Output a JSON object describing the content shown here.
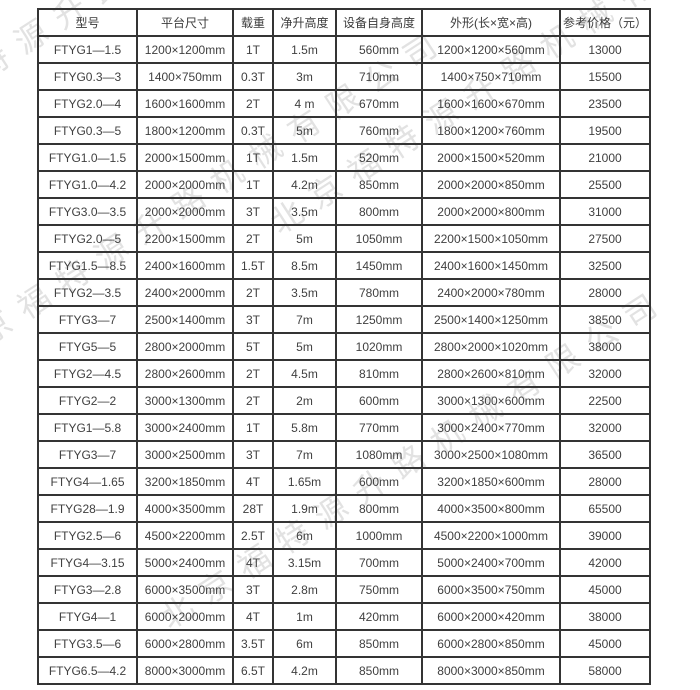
{
  "watermark": {
    "text": "北京福特源升路机械有限公司",
    "color": "#c7c7c7"
  },
  "colors": {
    "border": "#343434",
    "text": "#404040",
    "background": "#ffffff"
  },
  "table": {
    "headers": [
      "型号",
      "平台尺寸",
      "载重",
      "净升高度",
      "设备自身高度",
      "外形(长×宽×高)",
      "参考价格（元）"
    ],
    "rows": [
      [
        "FTYG1—1.5",
        "1200×1200mm",
        "1T",
        "1.5m",
        "560mm",
        "1200×1200×560mm",
        "13000"
      ],
      [
        "FTYG0.3—3",
        "1400×750mm",
        "0.3T",
        "3m",
        "710mm",
        "1400×750×710mm",
        "15500"
      ],
      [
        "FTYG2.0—4",
        "1600×1600mm",
        "2T",
        "4 m",
        "670mm",
        "1600×1600×670mm",
        "23500"
      ],
      [
        "FTYG0.3—5",
        "1800×1200mm",
        "0.3T",
        "5m",
        "760mm",
        "1800×1200×760mm",
        "19500"
      ],
      [
        "FTYG1.0—1.5",
        "2000×1500mm",
        "1T",
        "1.5m",
        "520mm",
        "2000×1500×520mm",
        "21000"
      ],
      [
        "FTYG1.0—4.2",
        "2000×2000mm",
        "1T",
        "4.2m",
        "850mm",
        "2000×2000×850mm",
        "25500"
      ],
      [
        "FTYG3.0—3.5",
        "2000×2000mm",
        "3T",
        "3.5m",
        "800mm",
        "2000×2000×800mm",
        "31000"
      ],
      [
        "FTYG2.0—5",
        "2200×1500mm",
        "2T",
        "5m",
        "1050mm",
        "2200×1500×1050mm",
        "27500"
      ],
      [
        "FTYG1.5—8.5",
        "2400×1600mm",
        "1.5T",
        "8.5m",
        "1450mm",
        "2400×1600×1450mm",
        "32500"
      ],
      [
        "FTYG2—3.5",
        "2400×2000mm",
        "2T",
        "3.5m",
        "780mm",
        "2400×2000×780mm",
        "28000"
      ],
      [
        "FTYG3—7",
        "2500×1400mm",
        "3T",
        "7m",
        "1250mm",
        "2500×1400×1250mm",
        "38500"
      ],
      [
        "FTYG5—5",
        "2800×2000mm",
        "5T",
        "5m",
        "1020mm",
        "2800×2000×1020mm",
        "38000"
      ],
      [
        "FTYG2—4.5",
        "2800×2600mm",
        "2T",
        "4.5m",
        "810mm",
        "2800×2600×810mm",
        "32000"
      ],
      [
        "FTYG2—2",
        "3000×1300mm",
        "2T",
        "2m",
        "600mm",
        "3000×1300×600mm",
        "22500"
      ],
      [
        "FTYG1—5.8",
        "3000×2400mm",
        "1T",
        "5.8m",
        "770mm",
        "3000×2400×770mm",
        "32000"
      ],
      [
        "FTYG3—7",
        "3000×2500mm",
        "3T",
        "7m",
        "1080mm",
        "3000×2500×1080mm",
        "36500"
      ],
      [
        "FTYG4—1.65",
        "3200×1850mm",
        "4T",
        "1.65m",
        "600mm",
        "3200×1850×600mm",
        "28000"
      ],
      [
        "FTYG28—1.9",
        "4000×3500mm",
        "28T",
        "1.9m",
        "800mm",
        "4000×3500×800mm",
        "65500"
      ],
      [
        "FTYG2.5—6",
        "4500×2200mm",
        "2.5T",
        "6m",
        "1000mm",
        "4500×2200×1000mm",
        "39000"
      ],
      [
        "FTYG4—3.15",
        "5000×2400mm",
        "4T",
        "3.15m",
        "700mm",
        "5000×2400×700mm",
        "42000"
      ],
      [
        "FTYG3—2.8",
        "6000×3500mm",
        "3T",
        "2.8m",
        "750mm",
        "6000×3500×750mm",
        "45000"
      ],
      [
        "FTYG4—1",
        "6000×2000mm",
        "4T",
        "1m",
        "420mm",
        "6000×2000×420mm",
        "38000"
      ],
      [
        "FTYG3.5—6",
        "6000×2800mm",
        "3.5T",
        "6m",
        "850mm",
        "6000×2800×850mm",
        "45000"
      ],
      [
        "FTYG6.5—4.2",
        "8000×3000mm",
        "6.5T",
        "4.2m",
        "850mm",
        "8000×3000×850mm",
        "58000"
      ]
    ]
  }
}
